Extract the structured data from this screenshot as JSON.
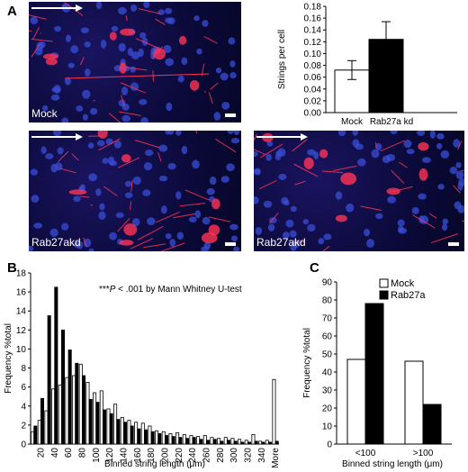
{
  "panels": {
    "A": {
      "letter": "A",
      "images": [
        {
          "label": "Mock"
        },
        {
          "label": "Rab27akd"
        },
        {
          "label": "Rab27akd"
        }
      ]
    },
    "B": {
      "letter": "B"
    },
    "C": {
      "letter": "C"
    }
  },
  "colors": {
    "black_bar": "#000000",
    "white_bar": "#ffffff",
    "arrow": "#ffffff",
    "nuclei": "#3a4dd8",
    "strings": "#ff3355"
  },
  "chart_data": [
    {
      "id": "A-inset",
      "type": "bar",
      "categories": [
        "Mock",
        "Rab27a kd"
      ],
      "values": [
        0.072,
        0.124
      ],
      "errors": [
        0.016,
        0.03
      ],
      "bar_colors": [
        "#ffffff",
        "#000000"
      ],
      "ylabel": "Strings per cell",
      "ylim": [
        0,
        0.18
      ],
      "yticks": [
        "0.00",
        "0.02",
        "0.04",
        "0.06",
        "0.08",
        "0.10",
        "0.12",
        "0.14",
        "0.16",
        "0.18"
      ]
    },
    {
      "id": "B",
      "type": "bar",
      "annotation_prefix": "***",
      "annotation_p": "P",
      "annotation_suffix": " < .001 by Mann Whitney U-test",
      "xlabel": "Binned string length (μm)",
      "ylabel": "Frequency %total",
      "ylim": [
        0,
        18
      ],
      "yticks": [
        "0",
        "2",
        "4",
        "6",
        "8",
        "10",
        "12",
        "14",
        "16",
        "18"
      ],
      "categories": [
        "10",
        "20",
        "30",
        "40",
        "50",
        "60",
        "70",
        "80",
        "90",
        "100",
        "110",
        "120",
        "130",
        "140",
        "150",
        "160",
        "170",
        "180",
        "190",
        "200",
        "210",
        "220",
        "230",
        "240",
        "250",
        "260",
        "270",
        "280",
        "290",
        "300",
        "310",
        "320",
        "330",
        "340",
        "350",
        "More"
      ],
      "xticklabels": [
        "20",
        "40",
        "60",
        "80",
        "100",
        "120",
        "140",
        "160",
        "180",
        "200",
        "220",
        "240",
        "260",
        "280",
        "300",
        "320",
        "340",
        "More"
      ],
      "series": [
        {
          "name": "Mock",
          "color": "#ffffff",
          "values": [
            1.3,
            2.5,
            3.5,
            5.8,
            6.2,
            7.0,
            7.2,
            8.4,
            6.5,
            5.4,
            5.6,
            3.7,
            4.2,
            2.8,
            2.5,
            2.3,
            2.2,
            1.9,
            1.4,
            1.3,
            1.1,
            1.2,
            1.0,
            0.9,
            0.8,
            0.9,
            0.7,
            0.6,
            0.7,
            0.6,
            0.5,
            0.4,
            1.0,
            0.3,
            0.4,
            6.8
          ]
        },
        {
          "name": "Rab27a",
          "color": "#000000",
          "values": [
            1.9,
            4.8,
            13.5,
            16.5,
            12.0,
            9.9,
            8.5,
            7.2,
            4.7,
            4.4,
            3.6,
            3.2,
            2.6,
            2.3,
            1.9,
            1.6,
            1.5,
            1.3,
            1.1,
            0.9,
            0.8,
            0.7,
            0.6,
            0.7,
            0.5,
            0.4,
            0.5,
            0.3,
            0.4,
            0.3,
            0.2,
            0.2,
            0.3,
            0.2,
            0.2,
            0.3
          ]
        }
      ]
    },
    {
      "id": "C",
      "type": "bar",
      "xlabel": "Binned string length (μm)",
      "ylabel": "Frequency %total",
      "ylim": [
        0,
        90
      ],
      "yticks": [
        "0",
        "10",
        "20",
        "30",
        "40",
        "50",
        "60",
        "70",
        "80",
        "90"
      ],
      "categories": [
        "<100",
        ">100"
      ],
      "legend_position": "top-right",
      "series": [
        {
          "name": "Mock",
          "color": "#ffffff",
          "values": [
            47,
            46
          ]
        },
        {
          "name": "Rab27a",
          "color": "#000000",
          "values": [
            78,
            22
          ]
        }
      ]
    }
  ]
}
